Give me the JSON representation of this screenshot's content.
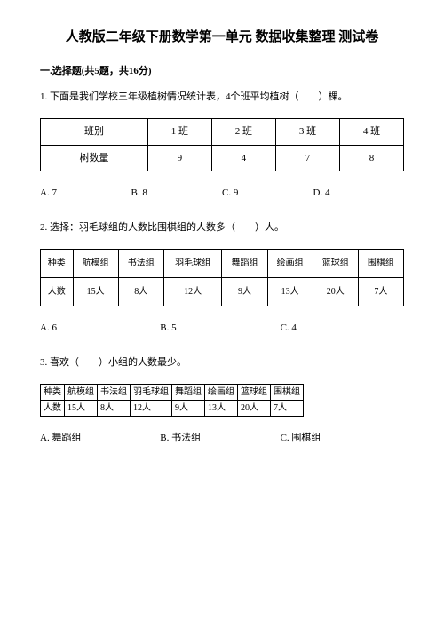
{
  "title": "人教版二年级下册数学第一单元 数据收集整理 测试卷",
  "section": "一.选择题(共5题，共16分)",
  "q1": {
    "text": "1. 下面是我们学校三年级植树情况统计表，4个班平均植树（　　）棵。",
    "table": {
      "headers": [
        "班别",
        "1 班",
        "2 班",
        "3 班",
        "4 班"
      ],
      "row_label": "树数量",
      "values": [
        "9",
        "4",
        "7",
        "8"
      ]
    },
    "opts": {
      "a": "A. 7",
      "b": "B. 8",
      "c": "C. 9",
      "d": "D. 4"
    }
  },
  "q2": {
    "text": "2. 选择：羽毛球组的人数比围棋组的人数多（　　）人。",
    "table": {
      "headers": [
        "种类",
        "航模组",
        "书法组",
        "羽毛球组",
        "舞蹈组",
        "绘画组",
        "篮球组",
        "围棋组"
      ],
      "row_label": "人数",
      "values": [
        "15人",
        "8人",
        "12人",
        "9人",
        "13人",
        "20人",
        "7人"
      ]
    },
    "opts": {
      "a": "A. 6",
      "b": "B. 5",
      "c": "C. 4"
    }
  },
  "q3": {
    "text": "3. 喜欢（　　）小组的人数最少。",
    "table": {
      "r1": [
        "种类",
        "航模组",
        "书法组",
        "羽毛球组",
        "舞蹈组",
        "绘画组",
        "篮球组",
        "围棋组"
      ],
      "r2": [
        "人数",
        "15人",
        "8人",
        "12人",
        "9人",
        "13人",
        "20人",
        "7人"
      ]
    },
    "opts": {
      "a": "A. 舞蹈组",
      "b": "B. 书法组",
      "c": "C. 围棋组"
    }
  }
}
